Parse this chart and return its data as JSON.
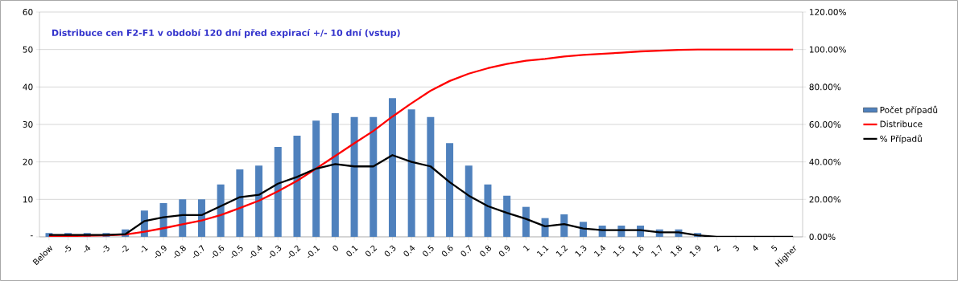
{
  "chart_data": {
    "type": "bar",
    "title": "Distribuce cen F2-F1 v období 120 dní před expirací +/- 10 dní (vstup)",
    "categories": [
      "Below",
      "-5",
      "-4",
      "-3",
      "-2",
      "-1",
      "-0.9",
      "-0.8",
      "-0.7",
      "-0.6",
      "-0.5",
      "-0.4",
      "-0.3",
      "-0.2",
      "-0.1",
      "0",
      "0.1",
      "0.2",
      "0.3",
      "0.4",
      "0.5",
      "0.6",
      "0.7",
      "0.8",
      "0.9",
      "1",
      "1.1",
      "1.2",
      "1.3",
      "1.4",
      "1.5",
      "1.6",
      "1.7",
      "1.8",
      "1.9",
      "2",
      "3",
      "4",
      "5",
      "Higher"
    ],
    "series": [
      {
        "name": "Počet případů",
        "color": "#4f81bd",
        "values": [
          1,
          1,
          1,
          1,
          2,
          7,
          9,
          10,
          10,
          14,
          18,
          19,
          24,
          27,
          31,
          33,
          32,
          32,
          37,
          34,
          32,
          25,
          19,
          14,
          11,
          8,
          5,
          6,
          4,
          3,
          3,
          3,
          2,
          2,
          1,
          0,
          0,
          0,
          0,
          0
        ]
      },
      {
        "name": "Distribuce",
        "type": "line",
        "axis": "y2",
        "color": "#ff0000",
        "values": [
          0.2,
          0.4,
          0.6,
          0.8,
          1.2,
          2.7,
          4.6,
          6.7,
          8.7,
          11.6,
          15.4,
          19.3,
          24.3,
          29.9,
          36.4,
          43.2,
          49.9,
          56.5,
          64.2,
          71.3,
          78.0,
          83.2,
          87.1,
          90.0,
          92.3,
          94.0,
          95.0,
          96.3,
          97.1,
          97.7,
          98.3,
          99.0,
          99.4,
          99.8,
          100,
          100,
          100,
          100,
          100,
          100
        ]
      },
      {
        "name": "% Případů",
        "type": "line",
        "axis": "y2",
        "color": "#000000",
        "values": [
          1,
          1,
          1,
          1,
          1.4,
          8.4,
          10.4,
          11.6,
          11.6,
          16.4,
          21.2,
          22.4,
          28.4,
          32,
          36.4,
          38.8,
          37.6,
          37.6,
          43.6,
          40,
          37.6,
          29.2,
          22,
          16.4,
          12.8,
          9.6,
          5.6,
          6.8,
          4.4,
          3.6,
          3.6,
          3.6,
          2.4,
          2.4,
          0.8,
          0,
          0,
          0,
          0,
          0
        ]
      }
    ],
    "ylim": [
      0,
      60
    ],
    "yticks": [
      {
        "value": 0,
        "label": "-"
      },
      10,
      20,
      30,
      40,
      50,
      60
    ],
    "y2lim": [
      0,
      120
    ],
    "y2ticks": [
      {
        "value": 0,
        "label": "0.00%"
      },
      {
        "value": 20,
        "label": "20.00%"
      },
      {
        "value": 40,
        "label": "40.00%"
      },
      {
        "value": 60,
        "label": "60.00%"
      },
      {
        "value": 80,
        "label": "80.00%"
      },
      {
        "value": 100,
        "label": "100.00%"
      },
      {
        "value": 120,
        "label": "120.00%"
      }
    ],
    "grid": "y",
    "legend": "right",
    "marker": "none",
    "line_style": "solid"
  }
}
